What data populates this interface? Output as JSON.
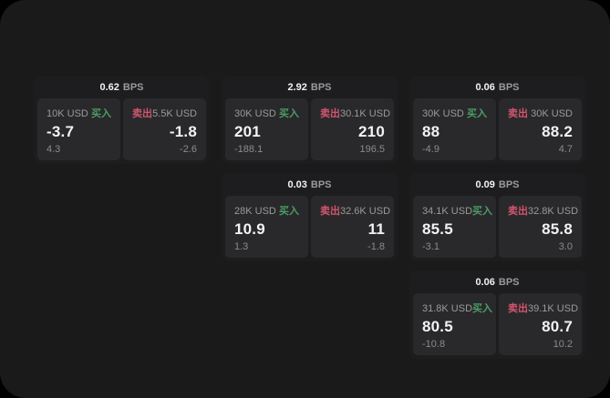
{
  "labels": {
    "bps_unit": "BPS",
    "buy": "买入",
    "sell": "卖出"
  },
  "colors": {
    "page_bg": "#000000",
    "window_bg": "#1a1a1a",
    "card_bg": "#1d1d1f",
    "panel_bg": "#29292b",
    "value_white": "#f2f2f2",
    "muted": "#9a9a9a",
    "sub_gray": "#8b8b8b",
    "buy_green": "#4c9c66",
    "sell_red": "#d2556e"
  },
  "cards": [
    {
      "bps": "0.62",
      "buy": {
        "volume": "10K USD",
        "side": "买入",
        "value": "-3.7",
        "sub": "4.3"
      },
      "sell": {
        "side": "卖出",
        "volume": "5.5K USD",
        "value": "-1.8",
        "sub": "-2.6"
      }
    },
    {
      "bps": "2.92",
      "buy": {
        "volume": "30K USD",
        "side": "买入",
        "value": "201",
        "sub": "-188.1"
      },
      "sell": {
        "side": "卖出",
        "volume": "30.1K USD",
        "value": "210",
        "sub": "196.5"
      }
    },
    {
      "bps": "0.06",
      "buy": {
        "volume": "30K USD",
        "side": "买入",
        "value": "88",
        "sub": "-4.9"
      },
      "sell": {
        "side": "卖出",
        "volume": "30K USD",
        "value": "88.2",
        "sub": "4.7"
      }
    },
    {
      "bps": "0.03",
      "buy": {
        "volume": "28K USD",
        "side": "买入",
        "value": "10.9",
        "sub": "1.3"
      },
      "sell": {
        "side": "卖出",
        "volume": "32.6K USD",
        "value": "11",
        "sub": "-1.8"
      }
    },
    {
      "bps": "0.09",
      "buy": {
        "volume": "34.1K USD",
        "side": "买入",
        "value": "85.5",
        "sub": "-3.1"
      },
      "sell": {
        "side": "卖出",
        "volume": "32.8K USD",
        "value": "85.8",
        "sub": "3.0"
      }
    },
    {
      "bps": "0.06",
      "buy": {
        "volume": "31.8K USD",
        "side": "买入",
        "value": "80.5",
        "sub": "-10.8"
      },
      "sell": {
        "side": "卖出",
        "volume": "39.1K USD",
        "value": "80.7",
        "sub": "10.2"
      }
    }
  ]
}
